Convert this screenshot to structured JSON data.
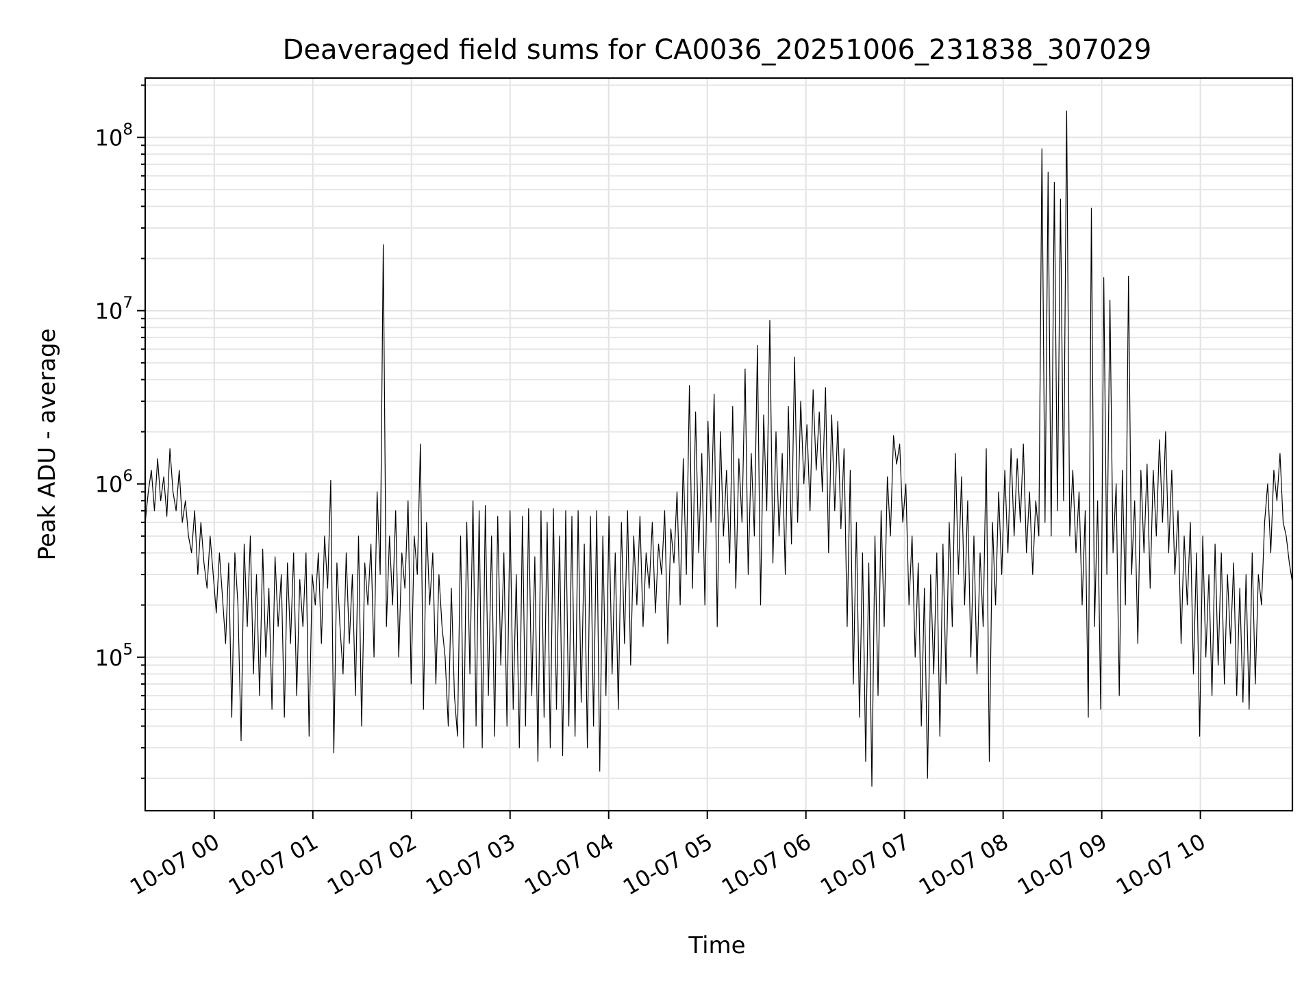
{
  "chart_data": {
    "type": "line",
    "title": "Deaveraged field sums for CA0036_20251006_231838_307029",
    "xlabel": "Time",
    "ylabel": "Peak ADU - average",
    "yscale": "log",
    "grid": true,
    "x_tick_labels": [
      "10-07 00",
      "10-07 01",
      "10-07 02",
      "10-07 03",
      "10-07 04",
      "10-07 05",
      "10-07 06",
      "10-07 07",
      "10-07 08",
      "10-07 09",
      "10-07 10"
    ],
    "y_tick_labels": [
      {
        "value": 100000,
        "base": "10",
        "exp": "5"
      },
      {
        "value": 1000000,
        "base": "10",
        "exp": "6"
      },
      {
        "value": 10000000,
        "base": "10",
        "exp": "7"
      },
      {
        "value": 100000000,
        "base": "10",
        "exp": "8"
      }
    ],
    "xlim": [
      "2025-10-06T23:18",
      "2025-10-07T10:56"
    ],
    "ylim": [
      13000,
      220000000
    ],
    "series": [
      {
        "color": "#000000",
        "x_start": "2025-10-06T23:18",
        "x_end": "2025-10-07T10:56",
        "values": [
          600000,
          900000,
          1200000,
          700000,
          1400000,
          800000,
          1100000,
          650000,
          1600000,
          900000,
          700000,
          1200000,
          600000,
          800000,
          500000,
          400000,
          700000,
          300000,
          600000,
          350000,
          250000,
          500000,
          300000,
          180000,
          400000,
          220000,
          120000,
          350000,
          45000,
          400000,
          200000,
          33000,
          450000,
          150000,
          500000,
          80000,
          300000,
          60000,
          420000,
          100000,
          250000,
          50000,
          380000,
          150000,
          300000,
          45000,
          350000,
          120000,
          400000,
          60000,
          280000,
          150000,
          400000,
          35000,
          300000,
          200000,
          400000,
          120000,
          500000,
          250000,
          1050000,
          28000,
          350000,
          150000,
          80000,
          400000,
          120000,
          300000,
          60000,
          500000,
          40000,
          350000,
          200000,
          450000,
          100000,
          900000,
          300000,
          24000000,
          150000,
          500000,
          200000,
          700000,
          100000,
          400000,
          250000,
          800000,
          70000,
          500000,
          300000,
          1700000,
          50000,
          600000,
          200000,
          400000,
          70000,
          300000,
          150000,
          100000,
          40000,
          250000,
          60000,
          35000,
          500000,
          30000,
          600000,
          80000,
          800000,
          40000,
          700000,
          30000,
          750000,
          60000,
          500000,
          35000,
          650000,
          90000,
          400000,
          40000,
          700000,
          50000,
          300000,
          30000,
          650000,
          40000,
          720000,
          60000,
          380000,
          25000,
          700000,
          45000,
          600000,
          30000,
          720000,
          50000,
          500000,
          27000,
          700000,
          40000,
          650000,
          35000,
          700000,
          55000,
          450000,
          30000,
          650000,
          40000,
          700000,
          22000,
          500000,
          60000,
          650000,
          80000,
          400000,
          50000,
          600000,
          120000,
          700000,
          90000,
          500000,
          200000,
          650000,
          150000,
          400000,
          250000,
          600000,
          180000,
          450000,
          300000,
          700000,
          120000,
          550000,
          350000,
          900000,
          200000,
          1400000,
          300000,
          3700000,
          250000,
          2600000,
          400000,
          1500000,
          200000,
          2300000,
          600000,
          3300000,
          150000,
          2000000,
          500000,
          1200000,
          350000,
          2800000,
          250000,
          1400000,
          600000,
          4600000,
          300000,
          1500000,
          500000,
          6300000,
          200000,
          2500000,
          700000,
          8800000,
          350000,
          2000000,
          500000,
          1500000,
          300000,
          2800000,
          450000,
          5400000,
          600000,
          3000000,
          1000000,
          2200000,
          700000,
          3500000,
          1200000,
          2600000,
          900000,
          3600000,
          400000,
          2500000,
          700000,
          2300000,
          550000,
          1600000,
          150000,
          1200000,
          70000,
          600000,
          45000,
          400000,
          25000,
          350000,
          18000,
          500000,
          60000,
          700000,
          150000,
          1100000,
          500000,
          1900000,
          1300000,
          1700000,
          600000,
          1000000,
          200000,
          500000,
          100000,
          350000,
          40000,
          250000,
          20000,
          300000,
          80000,
          400000,
          35000,
          450000,
          70000,
          600000,
          150000,
          1500000,
          300000,
          1100000,
          200000,
          800000,
          100000,
          500000,
          80000,
          400000,
          150000,
          1600000,
          25000,
          600000,
          200000,
          900000,
          300000,
          1200000,
          400000,
          1600000,
          500000,
          1400000,
          600000,
          1700000,
          400000,
          900000,
          300000,
          800000,
          500000,
          86000000,
          600000,
          63000000,
          500000,
          55000000,
          700000,
          44000000,
          800000,
          142000000,
          500000,
          1200000,
          400000,
          900000,
          200000,
          700000,
          45000,
          39000000,
          150000,
          800000,
          50000,
          15500000,
          300000,
          11500000,
          400000,
          1000000,
          60000,
          1200000,
          200000,
          15800000,
          300000,
          800000,
          120000,
          1200000,
          400000,
          1300000,
          250000,
          1200000,
          500000,
          1800000,
          600000,
          2000000,
          400000,
          1200000,
          300000,
          700000,
          120000,
          500000,
          200000,
          600000,
          80000,
          400000,
          35000,
          500000,
          100000,
          300000,
          60000,
          450000,
          90000,
          400000,
          70000,
          300000,
          120000,
          350000,
          60000,
          250000,
          55000,
          300000,
          50000,
          400000,
          70000,
          300000,
          200000,
          600000,
          1000000,
          400000,
          1200000,
          800000,
          1500000,
          600000,
          500000,
          350000,
          270000
        ]
      }
    ]
  }
}
